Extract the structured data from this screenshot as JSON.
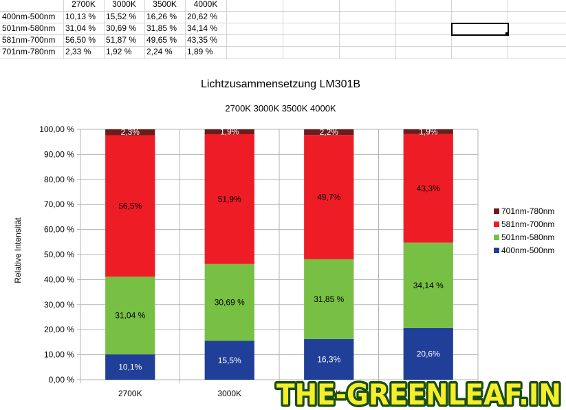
{
  "sheet": {
    "headers": [
      "2700K",
      "3000K",
      "3500K",
      "4000K"
    ],
    "rows": [
      {
        "label": "400nm-500nm",
        "values": [
          "10,13 %",
          "15,52 %",
          "16,26 %",
          "20,62 %"
        ]
      },
      {
        "label": "501nm-580nm",
        "values": [
          "31,04 %",
          "30,69 %",
          "31,85 %",
          "34,14 %"
        ]
      },
      {
        "label": "581nm-700nm",
        "values": [
          "56,50 %",
          "51,87 %",
          "49,65 %",
          "43,35 %"
        ]
      },
      {
        "label": "701nm-780nm",
        "values": [
          "2,33 %",
          "1,92 %",
          "2,24 %",
          "1,89 %"
        ]
      }
    ]
  },
  "chart_data": {
    "type": "bar",
    "stacked": true,
    "title": "Lichtzusammensetzung LM301B",
    "subtitle": "2700K 3000K 3500K 4000K",
    "ylabel": "Relative Intensität",
    "xlabel": "",
    "categories": [
      "2700K",
      "3000K",
      "3500K",
      "4000K"
    ],
    "ylim": [
      0,
      100
    ],
    "yticks": [
      "0,00 %",
      "10,00 %",
      "20,00 %",
      "30,00 %",
      "40,00 %",
      "50,00 %",
      "60,00 %",
      "70,00 %",
      "80,00 %",
      "90,00 %",
      "100,00 %"
    ],
    "grid": true,
    "legend_position": "right",
    "series": [
      {
        "name": "400nm-500nm",
        "color": "#1f3f99",
        "values": [
          10.13,
          15.52,
          16.26,
          20.62
        ],
        "labels": [
          "10,1%",
          "15,5%",
          "16,3%",
          "20,6%"
        ],
        "label_color": "#ffffff"
      },
      {
        "name": "501nm-580nm",
        "color": "#77c043",
        "values": [
          31.04,
          30.69,
          31.85,
          34.14
        ],
        "labels": [
          "31,04 %",
          "30,69 %",
          "31,85 %",
          "34,14 %"
        ],
        "label_color": "#000000"
      },
      {
        "name": "581nm-700nm",
        "color": "#ee1c25",
        "values": [
          56.5,
          51.87,
          49.65,
          43.35
        ],
        "labels": [
          "56,5%",
          "51,9%",
          "49,7%",
          "43,3%"
        ],
        "label_color": "#000000"
      },
      {
        "name": "701nm-780nm",
        "color": "#6b1c1c",
        "values": [
          2.33,
          1.92,
          2.24,
          1.89
        ],
        "labels": [
          "2,3%",
          "1,9%",
          "2,2%",
          "1,9%"
        ],
        "label_color": "#ffffff"
      }
    ]
  },
  "watermark": {
    "text": "THE-GREENLEAF.IN",
    "fill": "#f5ee2b",
    "stroke": "#1a4d12"
  }
}
